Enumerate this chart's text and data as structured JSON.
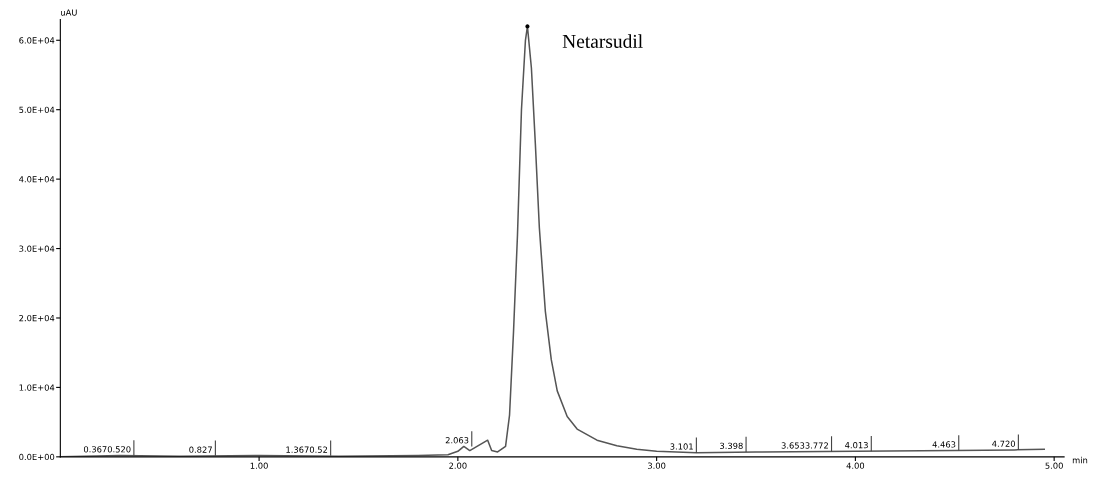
{
  "chart_data": {
    "type": "line",
    "ylabel": "uAU",
    "xlabel": "min",
    "x": [
      0,
      0.3,
      0.6,
      1.0,
      1.4,
      1.8,
      1.95,
      2.0,
      2.03,
      2.06,
      2.09,
      2.12,
      2.15,
      2.17,
      2.2,
      2.24,
      2.26,
      2.28,
      2.3,
      2.32,
      2.34,
      2.35,
      2.37,
      2.39,
      2.41,
      2.44,
      2.47,
      2.5,
      2.55,
      2.6,
      2.7,
      2.8,
      2.9,
      3.0,
      3.2,
      3.5,
      4.0,
      4.5,
      4.8,
      4.95
    ],
    "series": [
      {
        "color": "#555555",
        "values": [
          0,
          200,
          100,
          200,
          100,
          200,
          300,
          800,
          1500,
          900,
          1400,
          1900,
          2400,
          900,
          700,
          1500,
          6000,
          18000,
          32000,
          50000,
          60000,
          62000,
          56000,
          45000,
          33000,
          21000,
          14000,
          9500,
          5800,
          4000,
          2400,
          1600,
          1100,
          800,
          600,
          700,
          800,
          900,
          1000,
          1100
        ]
      }
    ],
    "xlim": [
      0,
      5.05
    ],
    "ylim": [
      0,
      63000
    ],
    "xticks": [
      {
        "value": 1,
        "label": "1.00"
      },
      {
        "value": 2,
        "label": "2.00"
      },
      {
        "value": 3,
        "label": "3.00"
      },
      {
        "value": 4,
        "label": "4.00"
      },
      {
        "value": 5,
        "label": "5.00"
      }
    ],
    "yticks": [
      {
        "value": 0,
        "label": "0.0E+00"
      },
      {
        "value": 10000,
        "label": "1.0E+04"
      },
      {
        "value": 20000,
        "label": "2.0E+04"
      },
      {
        "value": 30000,
        "label": "3.0E+04"
      },
      {
        "value": 40000,
        "label": "4.0E+04"
      },
      {
        "value": 50000,
        "label": "5.0E+04"
      },
      {
        "value": 60000,
        "label": "6.0E+04"
      }
    ],
    "annotations": [
      {
        "text": "Netarsudil",
        "x": 2.35,
        "y": 62000
      },
      {
        "text": "0.3670.520",
        "x": 0.37,
        "y": 200
      },
      {
        "text": "0.827",
        "x": 0.78,
        "y": 150
      },
      {
        "text": "1.3670.52",
        "x": 1.36,
        "y": 150
      },
      {
        "text": "2.063",
        "x": 2.07,
        "y": 1500
      },
      {
        "text": "3.101",
        "x": 3.2,
        "y": 600
      },
      {
        "text": "3.398",
        "x": 3.45,
        "y": 700
      },
      {
        "text": "3.6533.772",
        "x": 3.88,
        "y": 750
      },
      {
        "text": "4.013",
        "x": 4.08,
        "y": 800
      },
      {
        "text": "4.463",
        "x": 4.52,
        "y": 900
      },
      {
        "text": "4.720",
        "x": 4.82,
        "y": 1000
      }
    ],
    "grid": false,
    "legend": false
  }
}
